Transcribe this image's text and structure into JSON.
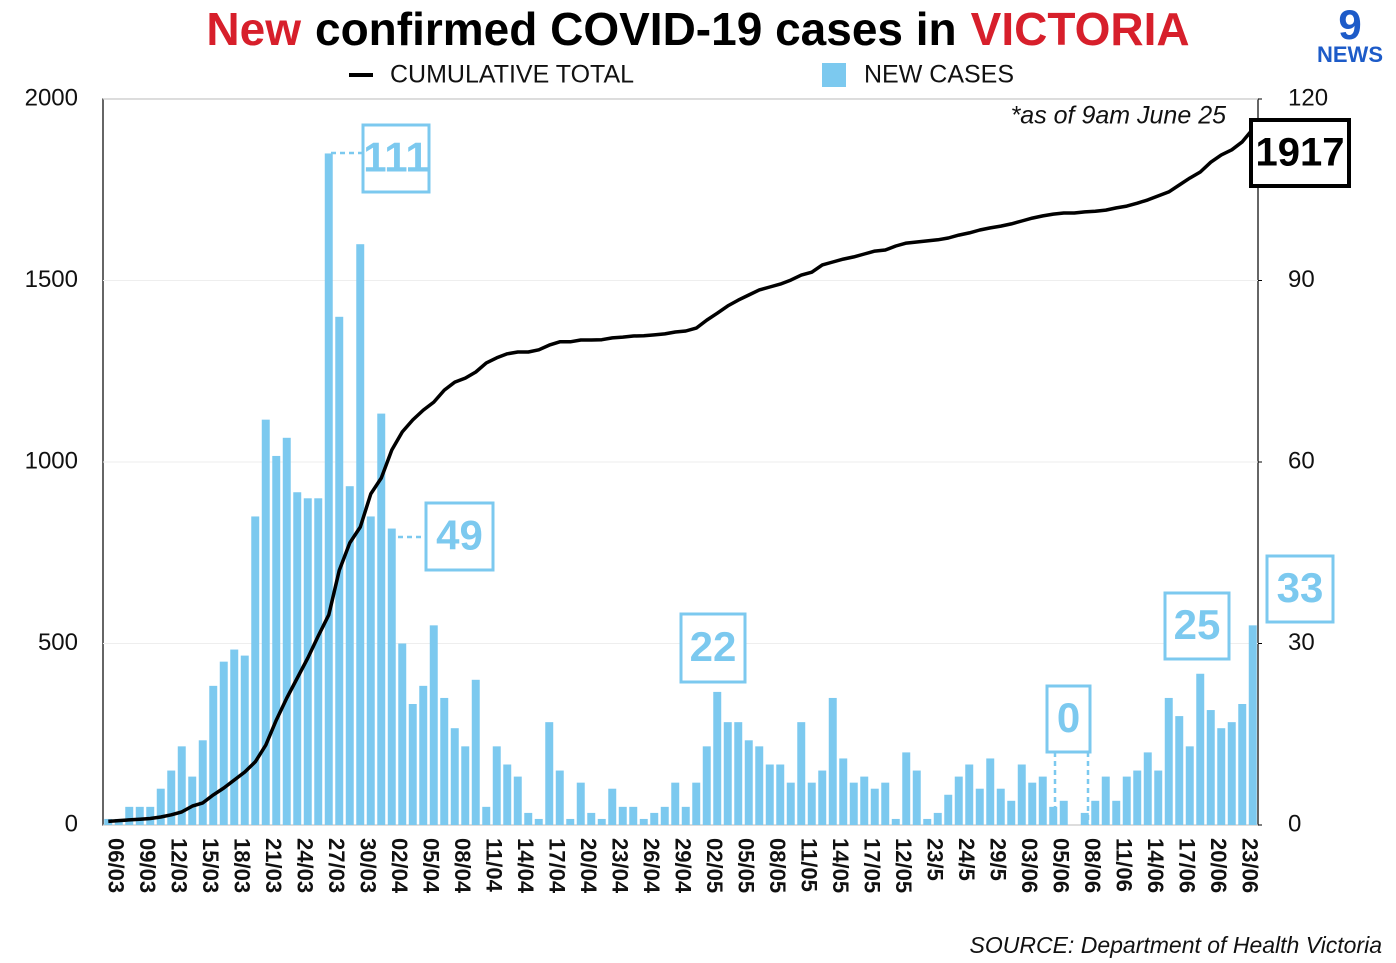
{
  "chart_data": {
    "type": "bar",
    "title": [
      {
        "text": "New",
        "color": "#d71f2b"
      },
      {
        "text": "confirmed COVID-19 cases in",
        "color": "#000000"
      },
      {
        "text": "VICTORIA",
        "color": "#d71f2b"
      }
    ],
    "note": "*as of 9am June 25",
    "source": "SOURCE: Department of Health Victoria",
    "logo": {
      "mark": "9",
      "text": "NEWS"
    },
    "categories": [
      "06/03",
      null,
      null,
      "09/03",
      null,
      null,
      "12/03",
      null,
      null,
      "15/03",
      null,
      null,
      "18/03",
      null,
      null,
      "21/03",
      null,
      null,
      "24/03",
      null,
      null,
      "27/03",
      null,
      null,
      "30/03",
      null,
      null,
      "02/04",
      null,
      null,
      "05/04",
      null,
      null,
      "08/04",
      null,
      null,
      "11/04",
      null,
      null,
      "14/04",
      null,
      null,
      "17/04",
      null,
      null,
      "20/04",
      null,
      null,
      "23/04",
      null,
      null,
      "26/04",
      null,
      null,
      "29/04",
      null,
      null,
      "02/05",
      null,
      null,
      "05/05",
      null,
      null,
      "08/05",
      null,
      null,
      "11/05",
      null,
      null,
      "14/05",
      null,
      null,
      "17/05",
      null,
      null,
      "12/05",
      null,
      null,
      "23/5",
      null,
      null,
      "24/5",
      null,
      null,
      "29/5",
      null,
      null,
      "03/06",
      null,
      null,
      "05/06",
      null,
      null,
      "08/06",
      null,
      null,
      "11/06",
      null,
      null,
      "14/06",
      null,
      null,
      "17/06",
      null,
      null,
      "20/06",
      null,
      null,
      "23/06",
      null
    ],
    "series": [
      {
        "name": "CUMULATIVE TOTAL",
        "type": "line",
        "color": "#000000",
        "axis": "y",
        "values": [
          10,
          12,
          14,
          16,
          18,
          22,
          28,
          36,
          52,
          61,
          83,
          102,
          124,
          146,
          174,
          220,
          289,
          350,
          405,
          460,
          521,
          579,
          702,
          777,
          821,
          912,
          956,
          1033,
          1083,
          1116,
          1143,
          1165,
          1198,
          1220,
          1231,
          1248,
          1273,
          1287,
          1298,
          1303,
          1303,
          1309,
          1322,
          1331,
          1331,
          1336,
          1336,
          1337,
          1342,
          1344,
          1347,
          1348,
          1350,
          1353,
          1358,
          1361,
          1369,
          1391,
          1410,
          1430,
          1446,
          1460,
          1474,
          1482,
          1490,
          1501,
          1515,
          1523,
          1543,
          1551,
          1559,
          1565,
          1573,
          1581,
          1584,
          1595,
          1603,
          1606,
          1609,
          1612,
          1617,
          1625,
          1631,
          1639,
          1645,
          1650,
          1656,
          1664,
          1672,
          1678,
          1683,
          1686,
          1686,
          1689,
          1691,
          1694,
          1700,
          1705,
          1713,
          1722,
          1733,
          1744,
          1763,
          1782,
          1799,
          1826,
          1846,
          1860,
          1882,
          1917
        ]
      },
      {
        "name": "NEW CASES",
        "type": "bar",
        "color": "#7cc9ef",
        "axis": "y2",
        "values": [
          1,
          1,
          3,
          3,
          3,
          6,
          9,
          13,
          8,
          14,
          23,
          27,
          29,
          28,
          51,
          67,
          61,
          64,
          55,
          54,
          54,
          111,
          84,
          56,
          96,
          51,
          68,
          49,
          30,
          20,
          23,
          33,
          21,
          16,
          13,
          24,
          3,
          13,
          10,
          8,
          2,
          1,
          17,
          9,
          1,
          7,
          2,
          1,
          6,
          3,
          3,
          1,
          2,
          3,
          7,
          3,
          7,
          13,
          22,
          17,
          17,
          14,
          13,
          10,
          10,
          7,
          17,
          7,
          9,
          21,
          11,
          7,
          8,
          6,
          7,
          1,
          12,
          9,
          1,
          2,
          5,
          8,
          10,
          6,
          11,
          6,
          4,
          10,
          7,
          8,
          3,
          4,
          0,
          2,
          4,
          8,
          4,
          8,
          9,
          12,
          9,
          21,
          18,
          13,
          25,
          19,
          16,
          17,
          20,
          33
        ]
      }
    ],
    "ylim": [
      0,
      2000
    ],
    "yticks": [
      0,
      500,
      1000,
      1500,
      2000
    ],
    "y2lim": [
      0,
      120
    ],
    "y2ticks": [
      0,
      30,
      60,
      90,
      120
    ],
    "grid": true
  }
}
